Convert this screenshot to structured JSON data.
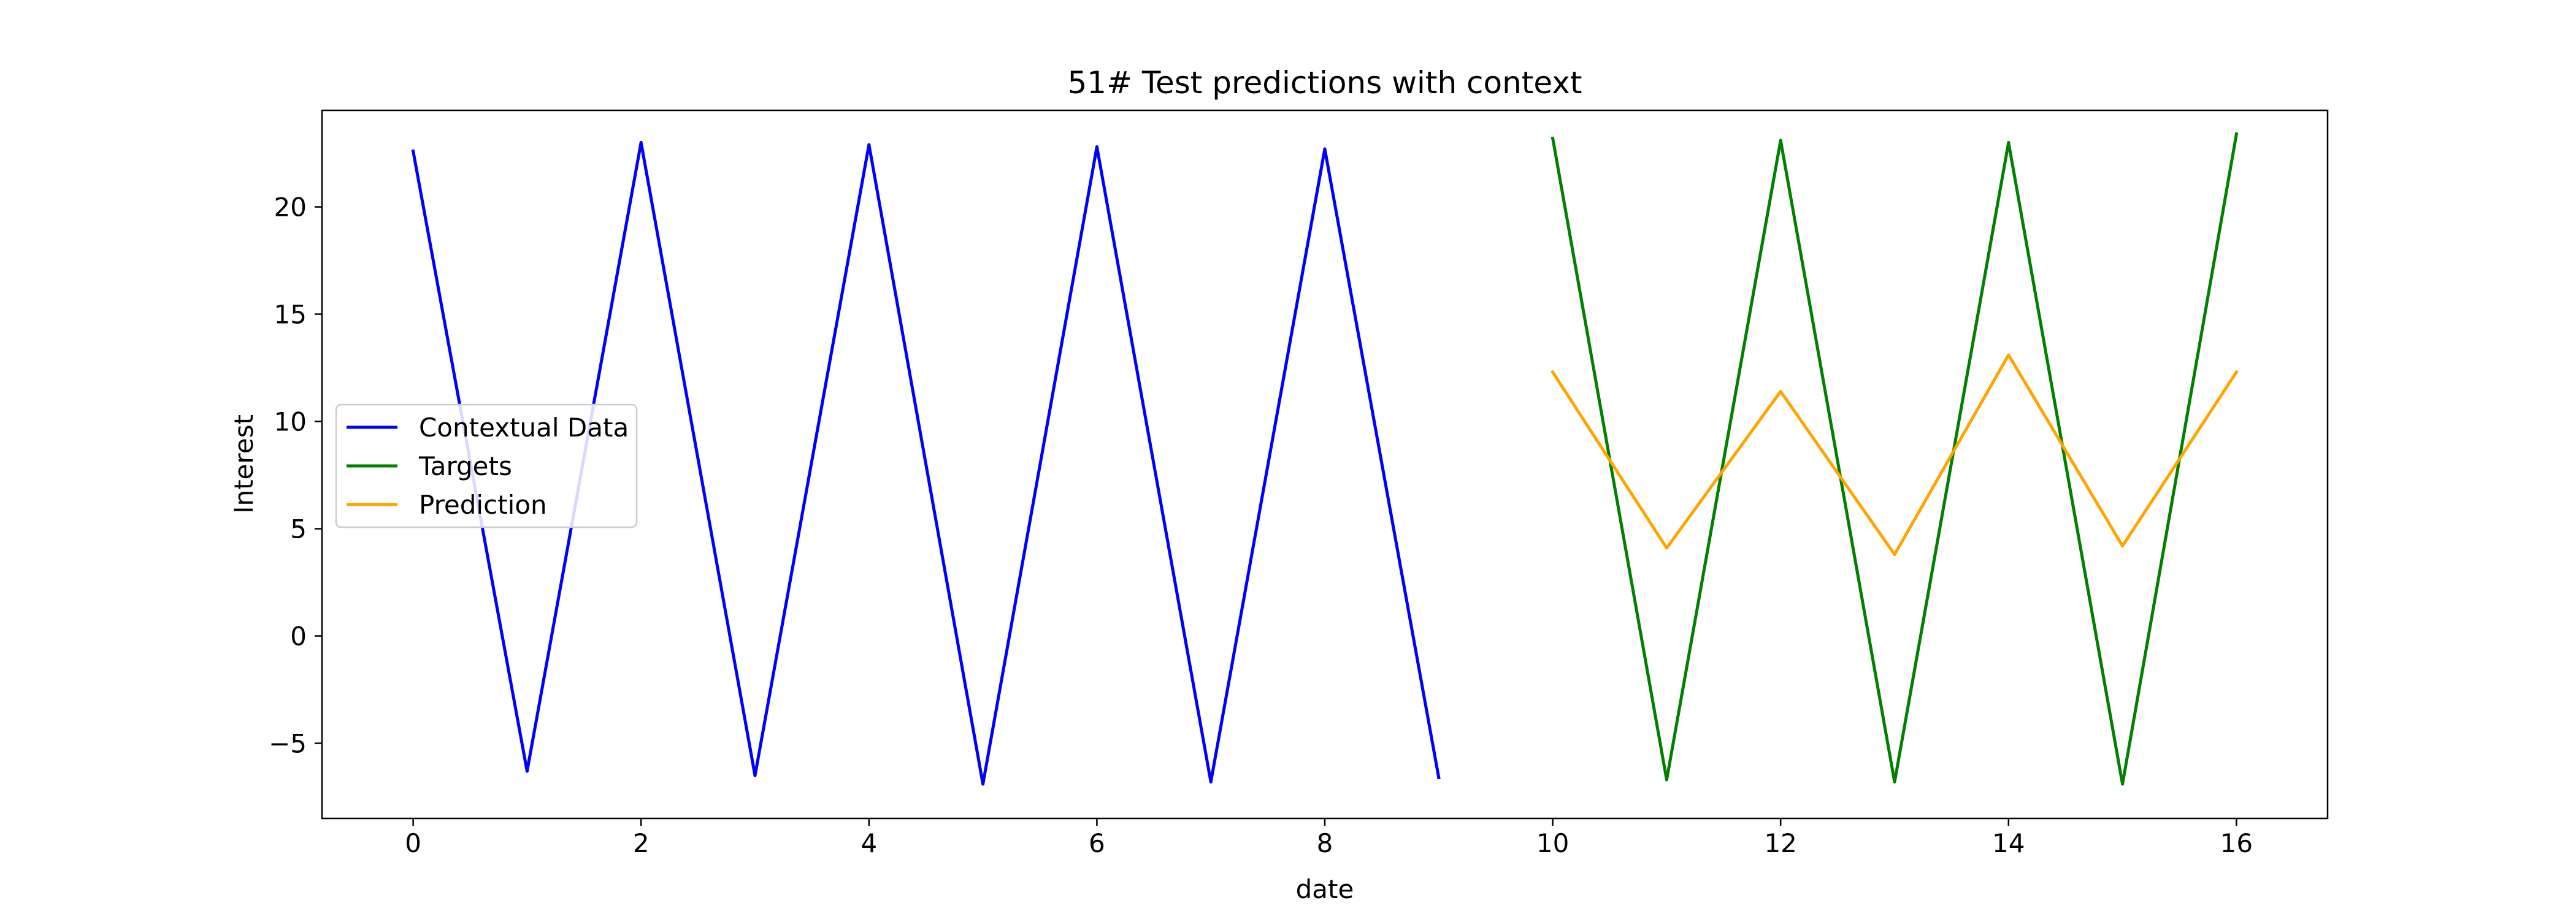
{
  "chart_data": {
    "type": "line",
    "title": "51# Test predictions with context",
    "xlabel": "date",
    "ylabel": "Interest",
    "xlim": [
      -0.8,
      16.8
    ],
    "ylim": [
      -8.5,
      24.5
    ],
    "xticks": [
      0,
      2,
      4,
      6,
      8,
      10,
      12,
      14,
      16
    ],
    "xtick_labels": [
      "0",
      "2",
      "4",
      "6",
      "8",
      "10",
      "12",
      "14",
      "16"
    ],
    "yticks": [
      -5,
      0,
      5,
      10,
      15,
      20
    ],
    "ytick_labels": [
      "−5",
      "0",
      "5",
      "10",
      "15",
      "20"
    ],
    "grid": false,
    "legend_position": "center-left",
    "series": [
      {
        "name": "Contextual Data",
        "color": "#0000ff",
        "x": [
          0,
          1,
          2,
          3,
          4,
          5,
          6,
          7,
          8,
          9
        ],
        "y": [
          22.6,
          -6.3,
          23.0,
          -6.5,
          22.9,
          -6.9,
          22.8,
          -6.8,
          22.7,
          -6.6
        ]
      },
      {
        "name": "Targets",
        "color": "#008000",
        "x": [
          10,
          11,
          12,
          13,
          14,
          15,
          16
        ],
        "y": [
          23.2,
          -6.7,
          23.1,
          -6.8,
          23.0,
          -6.9,
          23.4
        ]
      },
      {
        "name": "Prediction",
        "color": "#ffa500",
        "x": [
          10,
          11,
          12,
          13,
          14,
          15,
          16
        ],
        "y": [
          12.3,
          4.1,
          11.4,
          3.8,
          13.1,
          4.2,
          12.3
        ]
      }
    ]
  }
}
